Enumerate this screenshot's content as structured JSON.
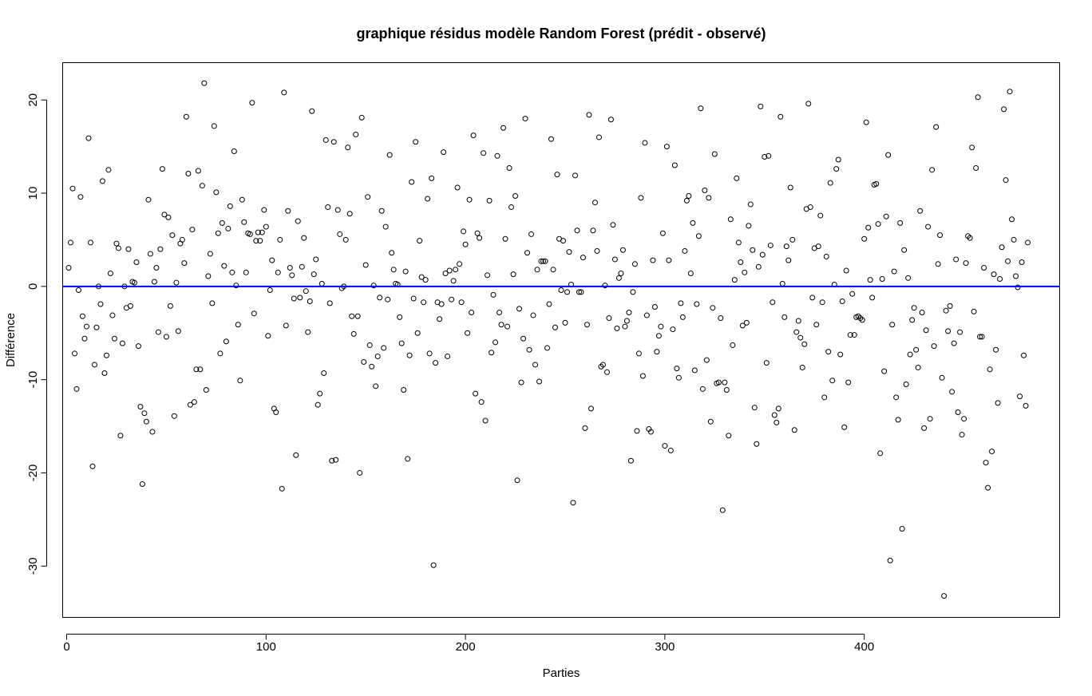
{
  "chart_data": {
    "type": "scatter",
    "title": "graphique résidus modèle Random Forest (prédit - observé)",
    "xlabel": "Parties",
    "ylabel": "Différence",
    "xlim": [
      -2,
      498
    ],
    "ylim": [
      -35.5,
      24
    ],
    "xticks": [
      0,
      100,
      200,
      300,
      400
    ],
    "yticks": [
      -30,
      -20,
      -10,
      0,
      10,
      20
    ],
    "grid": false,
    "legend": "none",
    "point_color": "#000000",
    "reference_line": {
      "y": 0,
      "color": "#0000ff"
    },
    "y": [
      2.0,
      4.7,
      10.5,
      -7.2,
      -11.0,
      -0.4,
      9.6,
      -3.2,
      -5.6,
      -4.3,
      15.9,
      4.7,
      -19.3,
      -8.4,
      -4.4,
      0.0,
      -1.9,
      11.3,
      -9.3,
      -7.4,
      12.5,
      1.4,
      -3.1,
      -5.6,
      4.6,
      4.1,
      -16.0,
      -6.1,
      0.0,
      -2.3,
      4.0,
      -2.1,
      0.5,
      0.4,
      2.6,
      -6.4,
      -12.9,
      -21.2,
      -13.6,
      -14.5,
      9.3,
      3.5,
      -15.6,
      0.5,
      2.0,
      -4.9,
      4.0,
      12.6,
      7.7,
      -5.4,
      7.4,
      -2.1,
      5.5,
      -13.9,
      0.4,
      -4.8,
      4.6,
      5.0,
      2.5,
      18.2,
      12.1,
      -12.7,
      6.1,
      -12.4,
      -8.9,
      12.4,
      -8.9,
      10.8,
      21.8,
      -11.1,
      1.1,
      3.5,
      -1.8,
      17.2,
      10.1,
      5.7,
      -7.2,
      6.8,
      2.2,
      -5.9,
      6.2,
      8.6,
      1.5,
      14.5,
      0.1,
      -4.1,
      -10.1,
      9.3,
      6.9,
      1.5,
      5.7,
      5.6,
      19.7,
      -2.9,
      4.9,
      5.8,
      4.9,
      5.8,
      8.2,
      6.4,
      -5.3,
      -0.4,
      2.8,
      -13.1,
      -13.5,
      1.5,
      5.0,
      -21.7,
      20.8,
      -4.2,
      8.1,
      2.0,
      1.2,
      -1.3,
      -18.1,
      7.0,
      -1.2,
      2.1,
      5.2,
      -0.5,
      -4.9,
      -1.6,
      18.8,
      1.3,
      2.9,
      -12.7,
      -11.5,
      0.3,
      -9.3,
      15.7,
      8.5,
      -1.8,
      -18.7,
      15.5,
      -18.6,
      8.2,
      5.6,
      -0.2,
      0.0,
      5.0,
      14.9,
      7.8,
      -3.2,
      -5.1,
      16.3,
      -3.2,
      -20.0,
      18.1,
      -8.1,
      2.3,
      9.6,
      -6.3,
      -8.6,
      0.1,
      -10.7,
      -7.5,
      -1.2,
      8.1,
      -6.6,
      6.4,
      -1.4,
      14.1,
      3.6,
      1.8,
      0.3,
      0.2,
      -3.3,
      -6.1,
      -11.1,
      1.6,
      -18.5,
      -7.4,
      11.2,
      -1.3,
      15.5,
      -5.0,
      4.9,
      1.0,
      -1.7,
      0.7,
      9.4,
      -7.2,
      11.6,
      -29.9,
      -8.2,
      -1.7,
      -3.5,
      -1.9,
      14.4,
      1.4,
      -7.5,
      1.7,
      -1.4,
      0.6,
      1.8,
      10.6,
      2.4,
      -1.7,
      5.9,
      4.5,
      -5.0,
      9.3,
      -2.8,
      16.2,
      -11.5,
      5.7,
      5.2,
      -12.4,
      14.3,
      -14.4,
      1.2,
      9.2,
      -7.1,
      -0.9,
      -6.0,
      14.0,
      -2.8,
      -4.1,
      17.0,
      5.1,
      -4.3,
      12.7,
      8.5,
      1.3,
      9.7,
      -20.8,
      -2.4,
      -10.3,
      -5.6,
      18.0,
      3.6,
      -6.8,
      5.6,
      -3.1,
      -8.4,
      1.8,
      -10.2,
      2.7,
      2.7,
      2.7,
      -6.6,
      -1.9,
      15.8,
      1.8,
      -4.4,
      12.0,
      5.1,
      -0.4,
      4.9,
      -3.9,
      -0.6,
      3.7,
      0.2,
      -23.2,
      11.9,
      6.0,
      -0.6,
      -0.6,
      3.1,
      -15.2,
      -4.1,
      18.4,
      -13.1,
      6.0,
      9.0,
      3.8,
      16.0,
      -8.6,
      -8.4,
      0.1,
      -9.2,
      -3.4,
      17.9,
      6.6,
      2.9,
      -4.5,
      0.9,
      1.4,
      3.9,
      -4.3,
      -3.7,
      -2.8,
      -18.7,
      -0.6,
      2.4,
      -15.5,
      -7.2,
      9.5,
      -9.6,
      15.4,
      -3.1,
      -15.3,
      -15.6,
      2.8,
      -2.2,
      -7.0,
      -5.3,
      -4.3,
      5.7,
      -17.1,
      15.0,
      2.8,
      -17.6,
      -4.6,
      13.0,
      -8.8,
      -9.8,
      -1.8,
      -3.3,
      3.8,
      9.2,
      9.7,
      1.4,
      6.8,
      -9.0,
      -1.9,
      5.4,
      19.1,
      -11.0,
      10.3,
      -7.9,
      9.5,
      -14.5,
      -2.3,
      14.2,
      -10.4,
      -10.3,
      -3.4,
      -24.0,
      -10.3,
      -11.1,
      -16.0,
      7.2,
      -6.3,
      0.7,
      11.6,
      4.7,
      2.6,
      -4.2,
      1.5,
      -3.9,
      6.5,
      8.8,
      3.9,
      -13.0,
      -16.9,
      2.1,
      19.3,
      3.4,
      13.9,
      -8.2,
      14.0,
      4.4,
      -1.7,
      -13.8,
      -14.6,
      -13.1,
      18.2,
      0.3,
      -3.3,
      4.3,
      2.8,
      10.6,
      5.0,
      -15.4,
      -4.9,
      -3.7,
      -5.5,
      -8.7,
      -6.2,
      8.3,
      19.6,
      8.5,
      -1.2,
      4.1,
      -4.1,
      4.3,
      7.6,
      -1.7,
      -11.9,
      3.2,
      -7.0,
      11.1,
      -10.1,
      0.2,
      12.6,
      13.6,
      -7.3,
      -1.6,
      -15.1,
      1.7,
      -10.3,
      -5.2,
      -0.8,
      -5.2,
      -3.3,
      -3.2,
      -3.4,
      -3.6,
      5.1,
      17.6,
      6.3,
      0.7,
      -1.2,
      10.9,
      11.0,
      6.7,
      -17.9,
      0.8,
      -9.1,
      7.5,
      14.1,
      -29.4,
      -4.1,
      1.6,
      -11.9,
      -14.3,
      6.8,
      -26.0,
      3.9,
      -10.5,
      0.9,
      -7.3,
      -3.6,
      -2.3,
      -6.8,
      -8.7,
      8.1,
      -2.8,
      -15.2,
      -4.7,
      6.4,
      -14.2,
      12.5,
      -6.4,
      17.1,
      2.4,
      5.5,
      -9.8,
      -33.2,
      -2.6,
      -4.8,
      -2.1,
      -11.3,
      -6.1,
      2.9,
      -13.5,
      -4.9,
      -15.9,
      -14.2,
      2.5,
      5.4,
      5.2,
      14.9,
      -2.7,
      12.7,
      20.3,
      -5.4,
      -5.4,
      2.0,
      -18.9,
      -21.6,
      -8.9,
      -17.7,
      1.3,
      -6.8,
      -12.5,
      0.8,
      4.2,
      19.0,
      11.4,
      2.7,
      20.9,
      7.2,
      5.0,
      1.1,
      -0.1,
      -11.8,
      2.6,
      -7.4,
      -12.8,
      4.7
    ]
  }
}
